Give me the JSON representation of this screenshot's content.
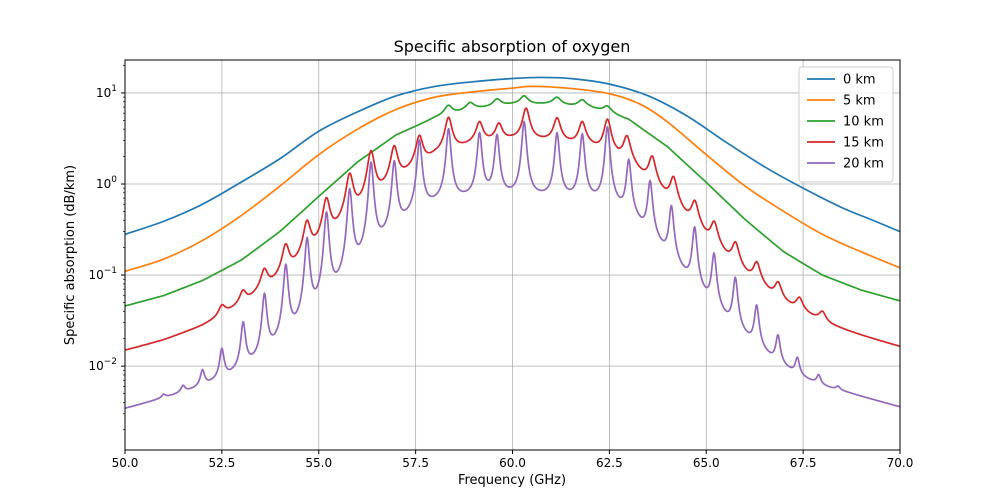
{
  "chart_data": {
    "type": "line",
    "title": "Specific absorption of oxygen",
    "xlabel": "Frequency (GHz)",
    "ylabel": "Specific absorption (dB/km)",
    "xlim": [
      50,
      70
    ],
    "ylim": [
      0.0012,
      23
    ],
    "yscale": "log",
    "grid": true,
    "legend_position": "top-right",
    "x_ticks": [
      50.0,
      52.5,
      55.0,
      57.5,
      60.0,
      62.5,
      65.0,
      67.5,
      70.0
    ],
    "x_tick_labels": [
      "50.0",
      "52.5",
      "55.0",
      "57.5",
      "60.0",
      "62.5",
      "65.0",
      "67.5",
      "70.0"
    ],
    "y_ticks": [
      0.01,
      0.1,
      1,
      10
    ],
    "y_tick_labels": [
      {
        "base": "10",
        "exp": "−2"
      },
      {
        "base": "10",
        "exp": "−1"
      },
      {
        "base": "10",
        "exp": "0"
      },
      {
        "base": "10",
        "exp": "1"
      }
    ],
    "series": [
      {
        "name": "0 km",
        "color": "#1f77b4",
        "shape": "smooth",
        "points": [
          [
            50,
            0.28
          ],
          [
            51,
            0.39
          ],
          [
            52,
            0.6
          ],
          [
            53,
            1.05
          ],
          [
            54,
            1.9
          ],
          [
            55,
            3.8
          ],
          [
            56,
            6.2
          ],
          [
            57,
            9.3
          ],
          [
            58,
            11.8
          ],
          [
            59,
            13.3
          ],
          [
            60,
            14.4
          ],
          [
            60.7,
            14.8
          ],
          [
            61.5,
            14.4
          ],
          [
            62.5,
            12.5
          ],
          [
            63.5,
            9.3
          ],
          [
            64.5,
            5.6
          ],
          [
            65.5,
            2.9
          ],
          [
            66.5,
            1.55
          ],
          [
            67.5,
            0.9
          ],
          [
            68.5,
            0.55
          ],
          [
            69.3,
            0.4
          ],
          [
            70,
            0.3
          ]
        ]
      },
      {
        "name": "5 km",
        "color": "#ff7f0e",
        "shape": "smooth",
        "points": [
          [
            50,
            0.11
          ],
          [
            51,
            0.15
          ],
          [
            52,
            0.24
          ],
          [
            53,
            0.45
          ],
          [
            54,
            0.95
          ],
          [
            55,
            2.1
          ],
          [
            56,
            4.0
          ],
          [
            57,
            6.6
          ],
          [
            58,
            9.0
          ],
          [
            59,
            10.3
          ],
          [
            60,
            11.3
          ],
          [
            60.5,
            11.8
          ],
          [
            61.5,
            11.2
          ],
          [
            62.5,
            9.8
          ],
          [
            63.3,
            7.5
          ],
          [
            64,
            4.8
          ],
          [
            65,
            2.1
          ],
          [
            66,
            0.95
          ],
          [
            67,
            0.5
          ],
          [
            68,
            0.28
          ],
          [
            69,
            0.18
          ],
          [
            70,
            0.12
          ]
        ]
      },
      {
        "name": "10 km",
        "color": "#2ca02c",
        "shape": "lines",
        "floor": [
          [
            50,
            0.038
          ],
          [
            51,
            0.05
          ],
          [
            52,
            0.075
          ],
          [
            53,
            0.13
          ],
          [
            54,
            0.28
          ],
          [
            55,
            0.7
          ],
          [
            56,
            1.7
          ],
          [
            57,
            3.4
          ],
          [
            58,
            5.2
          ],
          [
            59,
            6.6
          ],
          [
            60,
            7.4
          ],
          [
            61,
            7.5
          ],
          [
            62,
            6.8
          ],
          [
            63,
            5.0
          ],
          [
            64,
            2.5
          ],
          [
            65,
            1.0
          ],
          [
            66,
            0.38
          ],
          [
            67,
            0.16
          ],
          [
            68,
            0.085
          ],
          [
            69,
            0.057
          ],
          [
            70,
            0.043
          ]
        ],
        "peaks": [
          [
            58.35,
            7.2
          ],
          [
            58.9,
            7.6
          ],
          [
            59.6,
            8.1
          ],
          [
            60.3,
            9.2
          ],
          [
            61.15,
            8.3
          ],
          [
            61.8,
            8.0
          ],
          [
            62.45,
            7.0
          ]
        ],
        "amp": 0.2,
        "width": 0.12
      },
      {
        "name": "15 km",
        "color": "#d62728",
        "shape": "lines",
        "floor": [
          [
            50,
            0.0085
          ],
          [
            51,
            0.011
          ],
          [
            52,
            0.016
          ],
          [
            53,
            0.028
          ],
          [
            54,
            0.06
          ],
          [
            55,
            0.15
          ],
          [
            56,
            0.4
          ],
          [
            57,
            1.0
          ],
          [
            58,
            2.0
          ],
          [
            59,
            2.7
          ],
          [
            60,
            3.0
          ],
          [
            61,
            2.9
          ],
          [
            62,
            2.5
          ],
          [
            63,
            1.6
          ],
          [
            64,
            0.6
          ],
          [
            65,
            0.2
          ],
          [
            66,
            0.07
          ],
          [
            67,
            0.03
          ],
          [
            68,
            0.018
          ],
          [
            69,
            0.013
          ],
          [
            70,
            0.0097
          ]
        ],
        "peaks": [
          [
            52.5,
            0.028
          ],
          [
            53.05,
            0.048
          ],
          [
            53.6,
            0.09
          ],
          [
            54.15,
            0.18
          ],
          [
            54.7,
            0.34
          ],
          [
            55.2,
            0.63
          ],
          [
            55.8,
            1.2
          ],
          [
            56.35,
            2.2
          ],
          [
            56.95,
            2.5
          ],
          [
            57.6,
            3.3
          ],
          [
            58.35,
            5.3
          ],
          [
            59.15,
            4.7
          ],
          [
            59.65,
            4.5
          ],
          [
            60.35,
            6.7
          ],
          [
            61.15,
            5.2
          ],
          [
            61.8,
            4.7
          ],
          [
            62.45,
            5.0
          ],
          [
            62.95,
            3.2
          ],
          [
            63.6,
            1.9
          ],
          [
            64.15,
            1.1
          ],
          [
            64.7,
            0.58
          ],
          [
            65.2,
            0.33
          ],
          [
            65.75,
            0.19
          ],
          [
            66.3,
            0.11
          ],
          [
            66.85,
            0.062
          ],
          [
            67.4,
            0.04
          ],
          [
            68,
            0.025
          ]
        ],
        "amp": 0.5,
        "width": 0.1
      },
      {
        "name": "20 km",
        "color": "#9467bd",
        "shape": "lines",
        "floor": [
          [
            50,
            0.0017
          ],
          [
            51,
            0.0022
          ],
          [
            52,
            0.0028
          ],
          [
            52.7,
            0.0035
          ],
          [
            53.4,
            0.005
          ],
          [
            54,
            0.0085
          ],
          [
            54.6,
            0.015
          ],
          [
            55.2,
            0.03
          ],
          [
            55.8,
            0.07
          ],
          [
            56.4,
            0.15
          ],
          [
            57,
            0.3
          ],
          [
            57.6,
            0.5
          ],
          [
            58.2,
            0.62
          ],
          [
            59,
            0.68
          ],
          [
            60,
            0.7
          ],
          [
            61,
            0.68
          ],
          [
            62,
            0.62
          ],
          [
            62.6,
            0.55
          ],
          [
            63.2,
            0.35
          ],
          [
            63.8,
            0.18
          ],
          [
            64.4,
            0.085
          ],
          [
            65,
            0.04
          ],
          [
            65.6,
            0.02
          ],
          [
            66.2,
            0.011
          ],
          [
            66.8,
            0.0062
          ],
          [
            67.4,
            0.004
          ],
          [
            68,
            0.0031
          ],
          [
            68.7,
            0.0027
          ],
          [
            69.3,
            0.0023
          ],
          [
            70,
            0.0019
          ]
        ],
        "peaks": [
          [
            51.0,
            0.0026
          ],
          [
            51.5,
            0.0034
          ],
          [
            52.0,
            0.0058
          ],
          [
            52.5,
            0.0115
          ],
          [
            53.05,
            0.025
          ],
          [
            53.6,
            0.055
          ],
          [
            54.15,
            0.12
          ],
          [
            54.7,
            0.24
          ],
          [
            55.2,
            0.47
          ],
          [
            55.8,
            0.85
          ],
          [
            56.35,
            1.7
          ],
          [
            56.95,
            1.75
          ],
          [
            57.6,
            3.0
          ],
          [
            58.35,
            4.0
          ],
          [
            59.15,
            3.6
          ],
          [
            59.6,
            3.4
          ],
          [
            60.3,
            4.8
          ],
          [
            61.15,
            3.6
          ],
          [
            61.8,
            3.5
          ],
          [
            62.45,
            4.2
          ],
          [
            63.0,
            1.8
          ],
          [
            63.55,
            1.05
          ],
          [
            64.1,
            0.55
          ],
          [
            64.7,
            0.32
          ],
          [
            65.2,
            0.16
          ],
          [
            65.75,
            0.085
          ],
          [
            66.3,
            0.04
          ],
          [
            66.85,
            0.017
          ],
          [
            67.35,
            0.0085
          ],
          [
            67.9,
            0.0049
          ],
          [
            68.4,
            0.0034
          ],
          [
            68.95,
            0.0024
          ]
        ],
        "amp": 0,
        "width": 0.06
      }
    ]
  }
}
